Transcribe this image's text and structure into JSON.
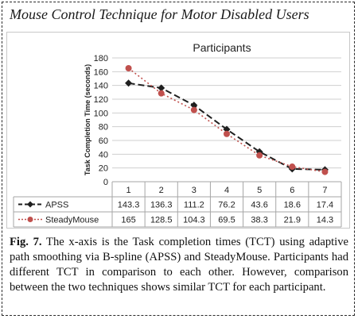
{
  "page_title": "Mouse Control Technique for Motor Disabled Users",
  "caption": {
    "label": "Fig. 7.",
    "text": "The x-axis is the Task completion times (TCT) using adaptive path smoothing via B-spline (APSS) and SteadyMouse. Participants had different TCT in comparison to each other. However, comparison between the two techniques shows similar TCT for each participant."
  },
  "chart_data": {
    "type": "line",
    "title": "Participants",
    "xlabel": "",
    "ylabel": "Task Completion Time (seconds)",
    "categories": [
      "1",
      "2",
      "3",
      "4",
      "5",
      "6",
      "7"
    ],
    "ylim": [
      0,
      180
    ],
    "yticks": [
      "0",
      "20",
      "40",
      "60",
      "80",
      "100",
      "120",
      "140",
      "160",
      "180"
    ],
    "grid": true,
    "legend": "table-left",
    "series": [
      {
        "name": "APSS",
        "values": [
          143.3,
          136.3,
          111.2,
          76.2,
          43.6,
          18.6,
          17.4
        ],
        "color": "#1f1f1f",
        "style": "dashed",
        "marker": "diamond"
      },
      {
        "name": "SteadyMouse",
        "values": [
          165,
          128.5,
          104.3,
          69.5,
          38.3,
          21.9,
          14.3
        ],
        "color": "#c0504d",
        "style": "dotted",
        "marker": "circle"
      }
    ],
    "table": {
      "rows": [
        {
          "name": "APSS",
          "cells": [
            "143.3",
            "136.3",
            "111.2",
            "76.2",
            "43.6",
            "18.6",
            "17.4"
          ]
        },
        {
          "name": "SteadyMouse",
          "cells": [
            "165",
            "128.5",
            "104.3",
            "69.5",
            "38.3",
            "21.9",
            "14.3"
          ]
        }
      ]
    }
  }
}
